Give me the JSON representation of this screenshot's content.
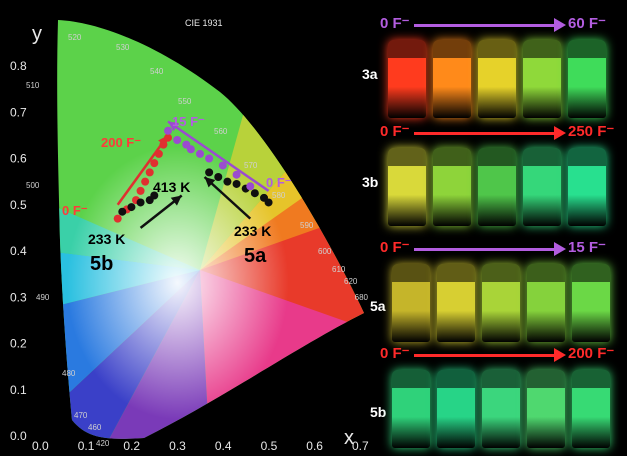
{
  "chart": {
    "title": "CIE 1931",
    "xlabel": "x",
    "ylabel": "y",
    "xticks": [
      "0.0",
      "0.1",
      "0.2",
      "0.3",
      "0.4",
      "0.5",
      "0.6",
      "0.7"
    ],
    "yticks": [
      "0.8",
      "0.7",
      "0.6",
      "0.5",
      "0.4",
      "0.3",
      "0.2",
      "0.1",
      "0.0"
    ],
    "wavelengths": [
      "520",
      "530",
      "540",
      "550",
      "560",
      "570",
      "580",
      "590",
      "600",
      "610",
      "620",
      "680",
      "510",
      "500",
      "490",
      "480",
      "470",
      "460",
      "420"
    ]
  },
  "annotations": {
    "f15": "15 F⁻",
    "f200": "200 F⁻",
    "f0_left": "0 F⁻",
    "f0_right": "0 F⁻",
    "k413": "413 K",
    "k233_left": "233 K",
    "k233_right": "233 K",
    "s5b": "5b",
    "s5a": "5a"
  },
  "chart_data": {
    "type": "scatter",
    "title": "CIE 1931",
    "xlabel": "x",
    "ylabel": "y",
    "xlim": [
      0.0,
      0.75
    ],
    "ylim": [
      0.0,
      0.85
    ],
    "series": [
      {
        "name": "",
        "color": "#e03030",
        "points": [
          [
            0.17,
            0.47
          ],
          [
            0.19,
            0.49
          ],
          [
            0.21,
            0.51
          ],
          [
            0.22,
            0.53
          ],
          [
            0.23,
            0.55
          ],
          [
            0.24,
            0.57
          ],
          [
            0.25,
            0.59
          ],
          [
            0.26,
            0.61
          ],
          [
            0.27,
            0.63
          ],
          [
            0.28,
            0.645
          ]
        ]
      },
      {
        "name": "",
        "color": "#101010",
        "points": [
          [
            0.18,
            0.485
          ],
          [
            0.2,
            0.495
          ],
          [
            0.22,
            0.505
          ],
          [
            0.24,
            0.51
          ],
          [
            0.25,
            0.52
          ],
          [
            0.37,
            0.57
          ],
          [
            0.39,
            0.56
          ],
          [
            0.41,
            0.55
          ],
          [
            0.43,
            0.545
          ],
          [
            0.45,
            0.535
          ],
          [
            0.47,
            0.525
          ],
          [
            0.49,
            0.515
          ],
          [
            0.5,
            0.505
          ]
        ]
      },
      {
        "name": "",
        "color": "#9b4bd0",
        "points": [
          [
            0.28,
            0.66
          ],
          [
            0.3,
            0.64
          ],
          [
            0.32,
            0.63
          ],
          [
            0.33,
            0.62
          ],
          [
            0.35,
            0.61
          ],
          [
            0.37,
            0.6
          ],
          [
            0.4,
            0.585
          ],
          [
            0.43,
            0.565
          ],
          [
            0.46,
            0.54
          ]
        ]
      }
    ],
    "arrows": [
      {
        "from": [
          0.17,
          0.5
        ],
        "to": [
          0.28,
          0.65
        ],
        "color": "#e03030"
      },
      {
        "from": [
          0.5,
          0.53
        ],
        "to": [
          0.28,
          0.68
        ],
        "color": "#9b4bd0"
      },
      {
        "from": [
          0.22,
          0.45
        ],
        "to": [
          0.31,
          0.52
        ],
        "color": "#101010"
      },
      {
        "from": [
          0.46,
          0.47
        ],
        "to": [
          0.36,
          0.56
        ],
        "color": "#101010"
      }
    ]
  },
  "panels": [
    {
      "id": "3a",
      "label": "3a",
      "from": "0 F⁻",
      "to": "60 F⁻",
      "from_color": "#b35de0",
      "arrow_color": "#b35de0",
      "to_color": "#b35de0",
      "vials": [
        "#ff3b1e",
        "#ff8a1a",
        "#e6d22a",
        "#8fd93a",
        "#3fdc5a"
      ]
    },
    {
      "id": "3b",
      "label": "3b",
      "from": "0 F⁻",
      "to": "250 F⁻",
      "from_color": "#ff2a2a",
      "arrow_color": "#ff2a2a",
      "to_color": "#ff2a2a",
      "vials": [
        "#d9d93a",
        "#8ed43a",
        "#4fc64a",
        "#35d77a",
        "#28e08f"
      ]
    },
    {
      "id": "5a",
      "label": "5a",
      "from": "0 F⁻",
      "to": "15 F⁻",
      "from_color": "#ff2a2a",
      "arrow_color": "#b35de0",
      "to_color": "#b35de0",
      "vials": [
        "#c5b52a",
        "#d7cf32",
        "#a9d438",
        "#85d23c",
        "#6bd846"
      ]
    },
    {
      "id": "5b",
      "label": "5b",
      "from": "0 F⁻",
      "to": "200 F⁻",
      "from_color": "#ff2a2a",
      "arrow_color": "#ff2a2a",
      "to_color": "#ff2a2a",
      "vials": [
        "#2fd27a",
        "#27d487",
        "#3bd67d",
        "#4fd86f",
        "#37da74"
      ]
    }
  ]
}
